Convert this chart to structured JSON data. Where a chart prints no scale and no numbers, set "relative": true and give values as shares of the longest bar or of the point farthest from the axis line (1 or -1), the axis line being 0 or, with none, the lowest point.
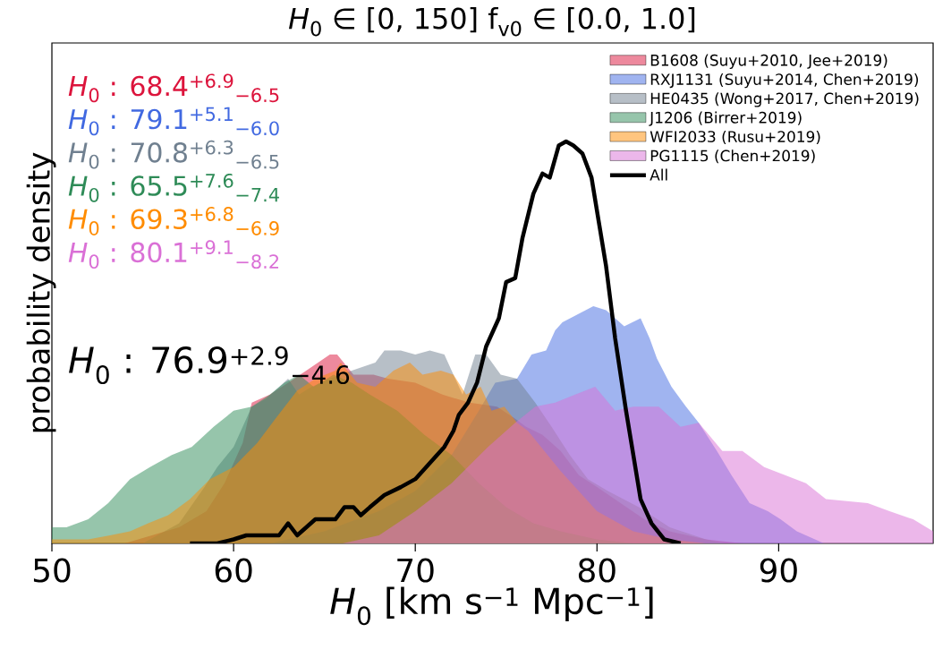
{
  "chart_data": {
    "type": "area",
    "title": "*H*$_{0}$ ∈ [0, 150]   f$_{v0}$ ∈ [0.0, 1.0]",
    "xlabel": "*H*$_{0}$ [km s$^{−1}$ Mpc$^{−1}$]",
    "ylabel": "probability density",
    "relative": true,
    "xlim": [
      50,
      98.5
    ],
    "xticks": [
      50,
      60,
      70,
      80,
      90
    ],
    "legend": "top right",
    "annotations": [
      "*H*$_{0}$ : 68.4$^{+6.9}$$_{−6.5}$",
      "*H*$_{0}$ : 79.1$^{+5.1}$$_{−6.0}$",
      "*H*$_{0}$ : 70.8$^{+6.3}$$_{−6.5}$",
      "*H*$_{0}$ : 65.5$^{+7.6}$$_{−7.4}$",
      "*H*$_{0}$ : 69.3$^{+6.8}$$_{−6.9}$",
      "*H*$_{0}$ : 80.1$^{+9.1}$$_{−8.2}$",
      "*H*$_{0}$ : 76.9$^{+2.9}$$_{−4.6}$"
    ],
    "series": [
      {
        "name": "B1608 (Suyu+2010, Jee+2019)",
        "color": "#dc143c",
        "x": [
          54,
          55.5,
          57,
          58.5,
          59.5,
          60.5,
          61,
          62,
          63,
          64,
          65.3,
          65.7,
          66.6,
          67.7,
          68.5,
          70,
          71.5,
          73,
          74.5,
          75.5,
          76.1,
          77,
          78,
          79,
          80,
          81.3,
          82.6,
          84,
          86,
          88
        ],
        "values": [
          0,
          0.02,
          0.04,
          0.08,
          0.15,
          0.25,
          0.35,
          0.37,
          0.4,
          0.43,
          0.47,
          0.47,
          0.42,
          0.42,
          0.41,
          0.4,
          0.37,
          0.35,
          0.34,
          0.31,
          0.29,
          0.27,
          0.23,
          0.17,
          0.14,
          0.1,
          0.06,
          0.03,
          0.01,
          0
        ]
      },
      {
        "name": "RXJ1131 (Suyu+2014, Chen+2019)",
        "color": "#4169e1",
        "x": [
          62,
          65,
          68,
          70,
          72,
          73.5,
          74.4,
          75.6,
          76.4,
          77.2,
          77.7,
          78.1,
          79.8,
          80.5,
          81.5,
          82.4,
          82.9,
          83.3,
          84.1,
          84.9,
          85.6,
          86.6,
          87.4,
          88.4,
          89.4,
          90.1,
          91,
          92.5
        ],
        "values": [
          0,
          0.03,
          0.08,
          0.13,
          0.22,
          0.33,
          0.4,
          0.41,
          0.47,
          0.48,
          0.53,
          0.55,
          0.59,
          0.58,
          0.54,
          0.56,
          0.51,
          0.46,
          0.39,
          0.34,
          0.3,
          0.23,
          0.17,
          0.1,
          0.08,
          0.06,
          0.03,
          0
        ]
      },
      {
        "name": "HE0435 (Wong+2017, Chen+2019)",
        "color": "#708090",
        "x": [
          55,
          57,
          58.4,
          59.1,
          60,
          61,
          61.8,
          63,
          63.6,
          64.3,
          65.3,
          66.5,
          67.8,
          68.3,
          69.2,
          70,
          70.8,
          71.6,
          72.6,
          73.3,
          73.9,
          74.7,
          75.6,
          76.6,
          77.5,
          78.5,
          79.5,
          80.6,
          82.3,
          84,
          86,
          87
        ],
        "values": [
          0,
          0.05,
          0.14,
          0.19,
          0.24,
          0.34,
          0.36,
          0.41,
          0.37,
          0.39,
          0.41,
          0.43,
          0.45,
          0.48,
          0.48,
          0.47,
          0.48,
          0.47,
          0.37,
          0.47,
          0.47,
          0.42,
          0.41,
          0.35,
          0.29,
          0.22,
          0.16,
          0.13,
          0.09,
          0.04,
          0.01,
          0
        ]
      },
      {
        "name": "J1206 (Birrer+2019)",
        "color": "#2e8b57",
        "x": [
          50,
          50.8,
          52,
          53.1,
          54.3,
          55.4,
          56.6,
          57.7,
          58.9,
          60,
          61,
          62,
          62.8,
          63.6,
          64.4,
          65.5,
          66.5,
          67.5,
          69,
          70.5,
          72,
          73.5,
          75,
          76.5,
          78,
          80,
          82
        ],
        "values": [
          0.04,
          0.04,
          0.06,
          0.1,
          0.16,
          0.19,
          0.22,
          0.24,
          0.29,
          0.33,
          0.34,
          0.37,
          0.4,
          0.42,
          0.39,
          0.42,
          0.4,
          0.37,
          0.33,
          0.27,
          0.22,
          0.15,
          0.09,
          0.05,
          0.03,
          0.01,
          0
        ]
      },
      {
        "name": "WFI2033 (Rusu+2019)",
        "color": "#ff8c00",
        "x": [
          50,
          52,
          53.2,
          54.3,
          55.3,
          56.4,
          57.6,
          58.7,
          60,
          61.3,
          62.3,
          63.5,
          64.5,
          65.6,
          65.9,
          66.8,
          67.8,
          68.8,
          69.7,
          70.4,
          71.4,
          72.1,
          72.8,
          73.6,
          74.2,
          74.9,
          75.6,
          76.2,
          78,
          80,
          82,
          84,
          86
        ],
        "values": [
          0.01,
          0.01,
          0.02,
          0.03,
          0.05,
          0.07,
          0.11,
          0.16,
          0.19,
          0.25,
          0.31,
          0.38,
          0.41,
          0.43,
          0.45,
          0.4,
          0.39,
          0.43,
          0.45,
          0.42,
          0.43,
          0.42,
          0.37,
          0.39,
          0.33,
          0.34,
          0.3,
          0.28,
          0.18,
          0.08,
          0.03,
          0.01,
          0
        ]
      },
      {
        "name": "PG1115 (Chen+2019)",
        "color": "#da70d6",
        "x": [
          66,
          68,
          70,
          72,
          74,
          75.5,
          76.6,
          77.7,
          78.8,
          79.9,
          81,
          82,
          83.4,
          84.6,
          85.6,
          86.9,
          88,
          89.2,
          91.5,
          92.6,
          94.9,
          96.1,
          97.4,
          98.5
        ],
        "values": [
          0,
          0.02,
          0.08,
          0.15,
          0.24,
          0.3,
          0.34,
          0.35,
          0.37,
          0.39,
          0.33,
          0.34,
          0.34,
          0.29,
          0.3,
          0.23,
          0.23,
          0.19,
          0.15,
          0.11,
          0.1,
          0.08,
          0.06,
          0.03
        ]
      },
      {
        "name": "All",
        "color": "#000000",
        "type": "line",
        "x": [
          57.6,
          59.1,
          60.0,
          60.7,
          61.3,
          62.5,
          63.0,
          63.5,
          64.5,
          65.6,
          66.1,
          66.6,
          67.0,
          67.5,
          68.3,
          69.2,
          70.0,
          70.8,
          71.6,
          72.1,
          72.4,
          72.9,
          73.4,
          73.9,
          74.6,
          75.0,
          75.5,
          75.9,
          76.5,
          77.0,
          77.4,
          77.9,
          78.3,
          78.7,
          79.2,
          79.7,
          80.1,
          80.5,
          81.0,
          81.6,
          82.0,
          82.4,
          83.0,
          83.7,
          84.6
        ],
        "values": [
          0,
          0,
          0.01,
          0.02,
          0.02,
          0.02,
          0.05,
          0.02,
          0.06,
          0.06,
          0.09,
          0.09,
          0.07,
          0.09,
          0.12,
          0.14,
          0.16,
          0.2,
          0.24,
          0.28,
          0.32,
          0.35,
          0.4,
          0.49,
          0.56,
          0.65,
          0.66,
          0.76,
          0.87,
          0.92,
          0.91,
          0.99,
          1,
          0.99,
          0.97,
          0.91,
          0.8,
          0.69,
          0.51,
          0.33,
          0.22,
          0.11,
          0.05,
          0.01,
          0
        ]
      }
    ]
  }
}
